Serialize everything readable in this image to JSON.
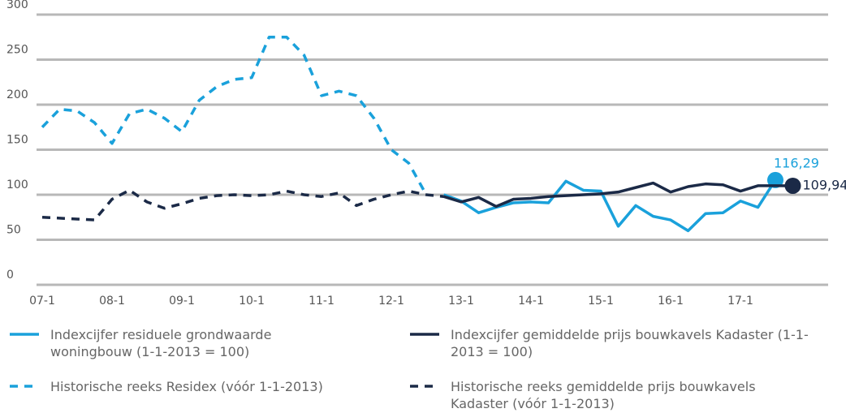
{
  "chart_data": {
    "type": "line",
    "categories": [
      "07-1",
      null,
      null,
      null,
      "08-1",
      null,
      null,
      null,
      "09-1",
      null,
      null,
      null,
      "10-1",
      null,
      null,
      null,
      "11-1",
      null,
      null,
      null,
      "12-1",
      null,
      null,
      null,
      "13-1",
      null,
      null,
      null,
      "14-1",
      null,
      null,
      null,
      "15-1",
      null,
      null,
      null,
      "16-1",
      null,
      null,
      null,
      "17-1",
      null,
      null,
      null
    ],
    "ylim": [
      0,
      300
    ],
    "yticks": [
      0,
      50,
      100,
      150,
      200,
      250,
      300
    ],
    "grid": true,
    "series": [
      {
        "name": "Indexcijfer residuele grondwaarde woningbouw (1-1-2013 = 100)",
        "color": "#1aa1db",
        "dashed": false,
        "values": [
          null,
          null,
          null,
          null,
          null,
          null,
          null,
          null,
          null,
          null,
          null,
          null,
          null,
          null,
          null,
          null,
          null,
          null,
          null,
          null,
          null,
          null,
          null,
          100,
          93,
          80,
          86,
          91,
          92,
          91,
          115,
          105,
          104,
          65,
          88,
          76,
          72,
          60,
          79,
          80,
          93,
          86,
          116.29,
          null
        ],
        "value_labels": [
          null,
          null,
          null,
          null,
          null,
          null,
          null,
          null,
          null,
          null,
          null,
          null,
          null,
          null,
          null,
          null,
          null,
          null,
          null,
          null,
          null,
          null,
          null,
          null,
          null,
          null,
          null,
          null,
          null,
          null,
          null,
          null,
          null,
          null,
          null,
          null,
          null,
          null,
          null,
          null,
          null,
          null,
          "116,29",
          null
        ]
      },
      {
        "name": "Indexcijfer gemiddelde prijs bouwkavels Kadaster (1-1-2013 = 100)",
        "color": "#1b2a47",
        "dashed": false,
        "values": [
          null,
          null,
          null,
          null,
          null,
          null,
          null,
          null,
          null,
          null,
          null,
          null,
          null,
          null,
          null,
          null,
          null,
          null,
          null,
          null,
          null,
          null,
          null,
          98,
          92,
          97,
          87,
          95,
          96,
          98,
          99,
          100,
          101,
          103,
          108,
          113,
          103,
          109,
          112,
          111,
          104,
          110,
          110,
          109.94
        ],
        "value_labels": [
          null,
          null,
          null,
          null,
          null,
          null,
          null,
          null,
          null,
          null,
          null,
          null,
          null,
          null,
          null,
          null,
          null,
          null,
          null,
          null,
          null,
          null,
          null,
          null,
          null,
          null,
          null,
          null,
          null,
          null,
          null,
          null,
          null,
          null,
          null,
          null,
          null,
          null,
          null,
          null,
          null,
          null,
          null,
          "109,94"
        ]
      },
      {
        "name": "Historische reeks Residex (vóór 1-1-2013)",
        "color": "#1aa1db",
        "dashed": true,
        "values": [
          175,
          195,
          193,
          180,
          157,
          190,
          195,
          185,
          170,
          205,
          220,
          228,
          230,
          275,
          275,
          255,
          210,
          215,
          210,
          185,
          150,
          135,
          100,
          null,
          null,
          null,
          null,
          null,
          null,
          null,
          null,
          null,
          null,
          null,
          null,
          null,
          null,
          null,
          null,
          null,
          null,
          null,
          null,
          null
        ]
      },
      {
        "name": "Historische reeks gemiddelde prijs bouwkavels Kadaster (vóór 1-1-2013)",
        "color": "#1b2a47",
        "dashed": true,
        "values": [
          75,
          74,
          73,
          72,
          95,
          105,
          92,
          85,
          90,
          96,
          99,
          100,
          99,
          100,
          104,
          100,
          98,
          102,
          88,
          95,
          100,
          104,
          100,
          98,
          null,
          null,
          null,
          null,
          null,
          null,
          null,
          null,
          null,
          null,
          null,
          null,
          null,
          null,
          null,
          null,
          null,
          null,
          null,
          null
        ]
      }
    ]
  }
}
